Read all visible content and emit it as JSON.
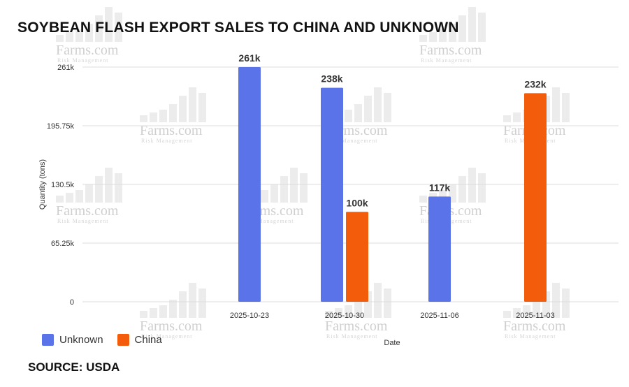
{
  "title": "SOYBEAN FLASH EXPORT SALES TO CHINA AND UNKNOWN",
  "source": "SOURCE: USDA",
  "watermark": {
    "brand": "Farms.com",
    "sub": "Risk Management"
  },
  "colors": {
    "unknown": "#5b73e8",
    "china": "#f25c0a",
    "grid": "#dddddd"
  },
  "chart_data": {
    "type": "bar",
    "title": "SOYBEAN FLASH EXPORT SALES TO CHINA AND UNKNOWN",
    "xlabel": "Date",
    "ylabel": "Quantity (tons)",
    "categories": [
      "2025-10-23",
      "2025-10-30",
      "2025-11-06",
      "2025-11-03"
    ],
    "ylim": [
      0,
      261000
    ],
    "yticks": [
      0,
      65250,
      130500,
      195750,
      261000
    ],
    "ytick_labels": [
      "0",
      "65.25k",
      "130.5k",
      "195.75k",
      "261k"
    ],
    "grid": true,
    "legend_position": "bottom-left",
    "series": [
      {
        "name": "Unknown",
        "values": [
          261000,
          238000,
          117000,
          null
        ],
        "labels": [
          "261k",
          "238k",
          "117k",
          ""
        ]
      },
      {
        "name": "China",
        "values": [
          null,
          100000,
          null,
          232000
        ],
        "labels": [
          "",
          "100k",
          "",
          "232k"
        ]
      }
    ]
  }
}
